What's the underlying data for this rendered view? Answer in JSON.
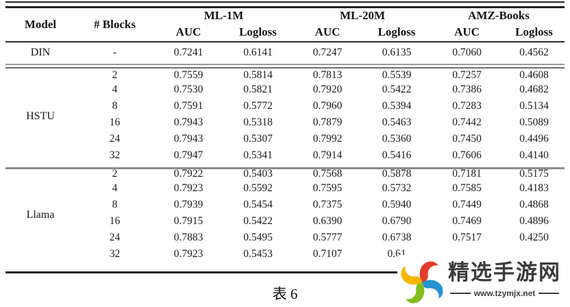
{
  "table": {
    "caption": "表 6",
    "headers": {
      "model": "Model",
      "blocks": "# Blocks",
      "auc": "AUC",
      "logloss": "Logloss"
    },
    "col_groups": [
      {
        "label": "ML-1M"
      },
      {
        "label": "ML-20M"
      },
      {
        "label": "AMZ-Books"
      }
    ],
    "sections": [
      {
        "model": "DIN",
        "rows": [
          {
            "blocks": "-",
            "values": [
              "0.7241",
              "0.6141",
              "0.7247",
              "0.6135",
              "0.7060",
              "0.4562"
            ]
          }
        ]
      },
      {
        "model": "HSTU",
        "rows": [
          {
            "blocks": "2",
            "values": [
              "0.7559",
              "0.5814",
              "0.7813",
              "0.5539",
              "0.7257",
              "0.4608"
            ]
          },
          {
            "blocks": "4",
            "values": [
              "0.7530",
              "0.5821",
              "0.7920",
              "0.5422",
              "0.7386",
              "0.4682"
            ]
          },
          {
            "blocks": "8",
            "values": [
              "0.7591",
              "0.5772",
              "0.7960",
              "0.5394",
              "0.7283",
              "0.5134"
            ]
          },
          {
            "blocks": "16",
            "values": [
              "0.7943",
              "0.5318",
              "0.7879",
              "0.5463",
              "0.7442",
              "0.5089"
            ]
          },
          {
            "blocks": "24",
            "values": [
              "0.7943",
              "0.5307",
              "0.7992",
              "0.5360",
              "0.7450",
              "0.4496"
            ]
          },
          {
            "blocks": "32",
            "values": [
              "0.7947",
              "0.5341",
              "0.7914",
              "0.5416",
              "0.7606",
              "0.4140"
            ]
          }
        ]
      },
      {
        "model": "Llama",
        "rows": [
          {
            "blocks": "2",
            "values": [
              "0.7922",
              "0.5403",
              "0.7568",
              "0.5878",
              "0.7181",
              "0.5175"
            ]
          },
          {
            "blocks": "4",
            "values": [
              "0.7923",
              "0.5592",
              "0.7595",
              "0.5732",
              "0.7585",
              "0.4183"
            ]
          },
          {
            "blocks": "8",
            "values": [
              "0.7939",
              "0.5454",
              "0.7375",
              "0.5940",
              "0.7449",
              "0.4868"
            ]
          },
          {
            "blocks": "16",
            "values": [
              "0.7915",
              "0.5422",
              "0.6390",
              "0.6790",
              "0.7469",
              "0.4896"
            ]
          },
          {
            "blocks": "24",
            "values": [
              "0.7883",
              "0.5495",
              "0.5777",
              "0.6738",
              "0.7517",
              "0.4250"
            ]
          },
          {
            "blocks": "32",
            "values": [
              "0.7923",
              "0.5453",
              "0.7107",
              "0.61",
              "",
              ""
            ]
          }
        ]
      }
    ]
  },
  "watermark": {
    "site_name": "精选手游网",
    "site_url": "www.tzymjx.net",
    "text_color": "#3b3b3b",
    "logo_colors": {
      "red": "#e23b2c",
      "blue": "#2492d2",
      "green": "#82bd1e",
      "yellow": "#f6b500"
    }
  }
}
